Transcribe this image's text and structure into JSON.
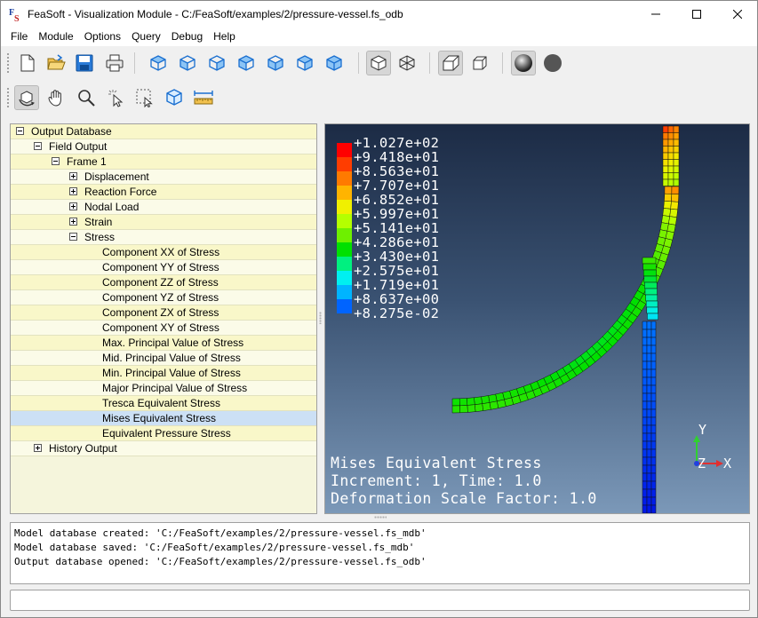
{
  "window": {
    "title": "FeaSoft - Visualization Module - C:/FeaSoft/examples/2/pressure-vessel.fs_odb",
    "app_icon_letters": "FS"
  },
  "menubar": [
    "File",
    "Module",
    "Options",
    "Query",
    "Debug",
    "Help"
  ],
  "toolbar_main": [
    "new-file-icon",
    "open-folder-icon",
    "save-icon",
    "print-icon",
    "view-iso-1-icon",
    "view-iso-2-icon",
    "view-iso-3-icon",
    "view-iso-4-icon",
    "view-iso-5-icon",
    "view-iso-6-icon",
    "view-iso-7-icon",
    "solid-cube-icon",
    "wireframe-cube-icon",
    "perspective-box-icon",
    "parallel-box-icon",
    "shaded-sphere-icon",
    "flat-sphere-icon"
  ],
  "toolbar_view": [
    "rotate-icon",
    "pan-hand-icon",
    "zoom-icon",
    "pick-icon",
    "box-select-icon",
    "fit-view-icon",
    "ruler-icon"
  ],
  "tree": {
    "rows": [
      {
        "label": "Output Database",
        "level": 0,
        "expander": "minus"
      },
      {
        "label": "Field Output",
        "level": 1,
        "expander": "minus"
      },
      {
        "label": "Frame 1",
        "level": 2,
        "expander": "minus"
      },
      {
        "label": "Displacement",
        "level": 3,
        "expander": "plus"
      },
      {
        "label": "Reaction Force",
        "level": 3,
        "expander": "plus"
      },
      {
        "label": "Nodal Load",
        "level": 3,
        "expander": "plus"
      },
      {
        "label": "Strain",
        "level": 3,
        "expander": "plus"
      },
      {
        "label": "Stress",
        "level": 3,
        "expander": "minus"
      },
      {
        "label": "Component XX of Stress",
        "level": 4,
        "expander": "none"
      },
      {
        "label": "Component YY of Stress",
        "level": 4,
        "expander": "none"
      },
      {
        "label": "Component ZZ of Stress",
        "level": 4,
        "expander": "none"
      },
      {
        "label": "Component YZ of Stress",
        "level": 4,
        "expander": "none"
      },
      {
        "label": "Component ZX of Stress",
        "level": 4,
        "expander": "none"
      },
      {
        "label": "Component XY of Stress",
        "level": 4,
        "expander": "none"
      },
      {
        "label": "Max. Principal Value of Stress",
        "level": 4,
        "expander": "none"
      },
      {
        "label": "Mid. Principal Value of Stress",
        "level": 4,
        "expander": "none"
      },
      {
        "label": "Min. Principal Value of Stress",
        "level": 4,
        "expander": "none"
      },
      {
        "label": "Major Principal Value of Stress",
        "level": 4,
        "expander": "none"
      },
      {
        "label": "Tresca Equivalent Stress",
        "level": 4,
        "expander": "none"
      },
      {
        "label": "Mises Equivalent Stress",
        "level": 4,
        "expander": "none",
        "selected": true
      },
      {
        "label": "Equivalent Pressure Stress",
        "level": 4,
        "expander": "none"
      },
      {
        "label": "History Output",
        "level": 1,
        "expander": "plus"
      }
    ]
  },
  "viewport": {
    "legend": [
      {
        "value": "+1.027e+02",
        "color": "#ff0000"
      },
      {
        "value": "+9.418e+01",
        "color": "#ff3d00"
      },
      {
        "value": "+8.563e+01",
        "color": "#ff7a00"
      },
      {
        "value": "+7.707e+01",
        "color": "#ffb400"
      },
      {
        "value": "+6.852e+01",
        "color": "#f0f000"
      },
      {
        "value": "+5.997e+01",
        "color": "#b4ff00"
      },
      {
        "value": "+5.141e+01",
        "color": "#6ef000"
      },
      {
        "value": "+4.286e+01",
        "color": "#00e000"
      },
      {
        "value": "+3.430e+01",
        "color": "#00f080"
      },
      {
        "value": "+2.575e+01",
        "color": "#00f0f0"
      },
      {
        "value": "+1.719e+01",
        "color": "#00b4ff"
      },
      {
        "value": "+8.637e+00",
        "color": "#0064ff"
      },
      {
        "value": "+8.275e-02",
        "color": "#0000e0"
      }
    ],
    "field_name": "Mises Equivalent Stress",
    "step_info": "Increment: 1, Time: 1.0",
    "deformation_info": "Deformation Scale Factor: 1.0",
    "triad": {
      "y": "Y",
      "z": "Z",
      "x": "X"
    }
  },
  "console": {
    "lines": [
      "Model database created: 'C:/FeaSoft/examples/2/pressure-vessel.fs_mdb'",
      "Model database saved: 'C:/FeaSoft/examples/2/pressure-vessel.fs_mdb'",
      "Output database opened: 'C:/FeaSoft/examples/2/pressure-vessel.fs_odb'"
    ]
  },
  "command_input": {
    "value": ""
  }
}
